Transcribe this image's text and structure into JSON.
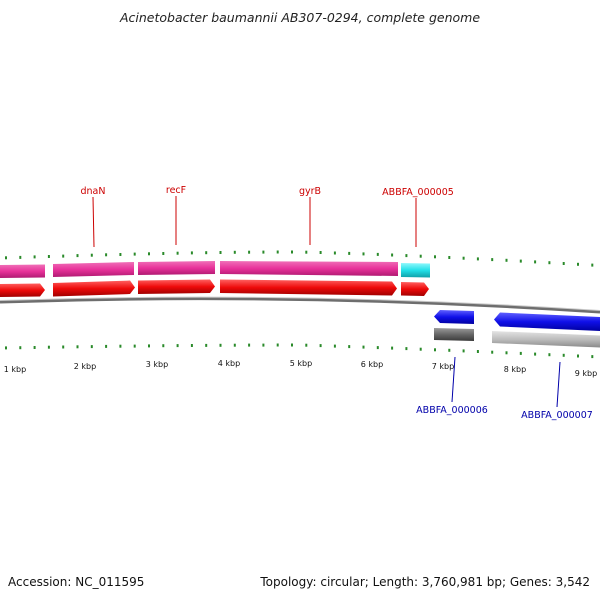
{
  "title": "Acinetobacter baumannii AB307-0294, complete genome",
  "footer": {
    "accession": "Accession: NC_011595",
    "summary": "Topology: circular; Length: 3,760,981 bp; Genes: 3,542"
  },
  "colors": {
    "forward_gene": "#e8329a",
    "forward_cds": "#ee0a0a",
    "forward_misc": "#22e0e8",
    "reverse_gene": "#1010e8",
    "reverse_track": "#aaaaaa",
    "ticks": "#2a8a2a",
    "forward_label": "#cc0000",
    "reverse_label": "#0000aa"
  },
  "scale_labels": [
    "1 kbp",
    "2 kbp",
    "3 kbp",
    "4 kbp",
    "5 kbp",
    "6 kbp",
    "7 kbp",
    "8 kbp",
    "9 kbp"
  ],
  "forward_genes": [
    {
      "label": "dnaN"
    },
    {
      "label": "recF"
    },
    {
      "label": "gyrB"
    },
    {
      "label": "ABBFA_000005"
    }
  ],
  "reverse_genes": [
    {
      "label": "ABBFA_000006"
    },
    {
      "label": "ABBFA_000007"
    }
  ]
}
